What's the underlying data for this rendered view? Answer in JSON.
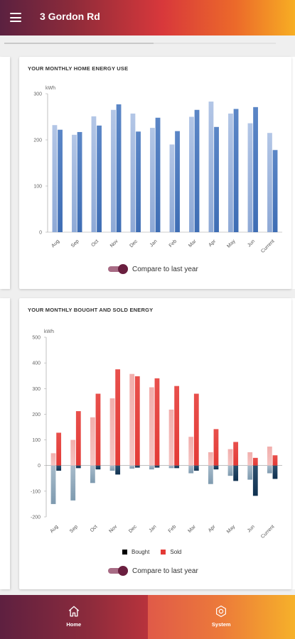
{
  "app": {
    "title": "3 Gordon Rd"
  },
  "energy_use": {
    "title": "YOUR MONTHLY HOME ENERGY USE",
    "toggle_label": "Compare to last year"
  },
  "bought_sold": {
    "title": "YOUR MONTHLY BOUGHT AND SOLD ENERGY",
    "toggle_label": "Compare to last year",
    "legend": {
      "bought": "Bought",
      "sold": "Sold"
    }
  },
  "nav": {
    "home": "Home",
    "system": "System"
  },
  "colors": {
    "use_current": "#3e6db4",
    "use_last_year": "#b3c6e6",
    "sold": "#e33a36",
    "sold_last_year": "#f2aeac",
    "bought": "#0f3150",
    "bought_last_year": "#7e9aaf"
  },
  "icons": {
    "menu": "menu-icon",
    "home": "home-icon",
    "system": "gear-icon"
  },
  "chart_data": [
    {
      "type": "bar",
      "title": "YOUR MONTHLY HOME ENERGY USE",
      "ylabel": "kWh",
      "ylim": [
        0,
        300
      ],
      "yticks": [
        0,
        100,
        200,
        300
      ],
      "categories": [
        "Aug",
        "Sep",
        "Oct",
        "Nov",
        "Dec",
        "Jan",
        "Feb",
        "Mar",
        "Apr",
        "May",
        "Jun",
        "Current"
      ],
      "series": [
        {
          "values": [
            232,
            211,
            251,
            265,
            257,
            226,
            190,
            250,
            283,
            257,
            236,
            215
          ]
        },
        {
          "values": [
            222,
            217,
            231,
            277,
            218,
            248,
            219,
            265,
            228,
            267,
            271,
            178
          ]
        }
      ]
    },
    {
      "type": "bar",
      "title": "YOUR MONTHLY BOUGHT AND SOLD ENERGY",
      "ylabel": "kWh",
      "ylim": [
        -200,
        500
      ],
      "yticks": [
        -200,
        -100,
        0,
        100,
        200,
        300,
        400,
        500
      ],
      "categories": [
        "Aug",
        "Sep",
        "Oct",
        "Nov",
        "Dec",
        "Jan",
        "Feb",
        "Mar",
        "Apr",
        "May",
        "Jun",
        "Current"
      ],
      "series": [
        {
          "name": "Sold",
          "values": [
            128,
            212,
            280,
            375,
            348,
            340,
            310,
            280,
            142,
            92,
            30,
            40
          ]
        },
        {
          "name": "Bought",
          "values": [
            -20,
            -10,
            -15,
            -35,
            -8,
            -8,
            -10,
            -20,
            -15,
            -60,
            -118,
            -52
          ]
        },
        {
          "values": [
            48,
            100,
            188,
            262,
            357,
            305,
            218,
            112,
            52,
            64,
            52,
            74
          ]
        },
        {
          "values": [
            -150,
            -136,
            -68,
            -20,
            -12,
            -15,
            -10,
            -30,
            -72,
            -40,
            -55,
            -30
          ]
        }
      ]
    }
  ]
}
